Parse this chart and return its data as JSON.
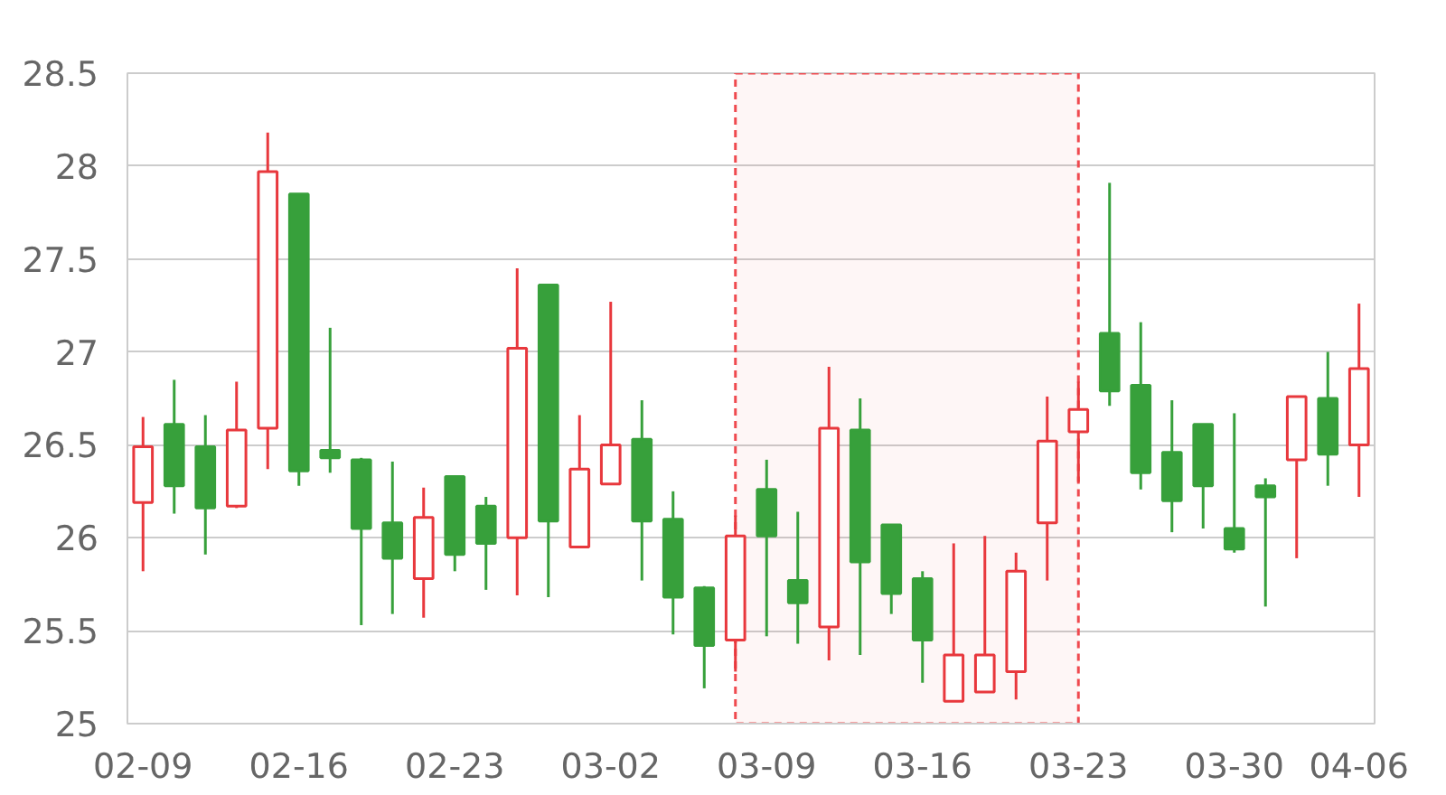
{
  "chart_data": {
    "type": "candlestick",
    "categories": [
      "02-09",
      null,
      null,
      null,
      null,
      "02-16",
      null,
      null,
      null,
      null,
      "02-23",
      null,
      null,
      null,
      null,
      "03-02",
      null,
      null,
      null,
      null,
      "03-09",
      null,
      null,
      null,
      null,
      "03-16",
      null,
      null,
      null,
      null,
      "03-23",
      null,
      null,
      null,
      null,
      "03-30",
      null,
      null,
      null,
      "04-06"
    ],
    "ohlc": [
      [
        26.19,
        26.65,
        25.82,
        26.49
      ],
      [
        26.61,
        26.85,
        26.13,
        26.28
      ],
      [
        26.49,
        26.66,
        25.91,
        26.16
      ],
      [
        26.17,
        26.84,
        26.16,
        26.58
      ],
      [
        26.59,
        28.18,
        26.37,
        27.97
      ],
      [
        27.85,
        27.85,
        26.28,
        26.36
      ],
      [
        26.47,
        27.13,
        26.35,
        26.43
      ],
      [
        26.42,
        26.43,
        25.53,
        26.05
      ],
      [
        26.08,
        26.41,
        25.59,
        25.89
      ],
      [
        25.78,
        26.27,
        25.57,
        26.11
      ],
      [
        26.33,
        26.33,
        25.82,
        25.91
      ],
      [
        26.17,
        26.22,
        25.72,
        25.97
      ],
      [
        26.0,
        27.45,
        25.69,
        27.02
      ],
      [
        27.36,
        27.36,
        25.68,
        26.09
      ],
      [
        25.95,
        26.66,
        25.95,
        26.37
      ],
      [
        26.29,
        27.27,
        26.29,
        26.5
      ],
      [
        26.53,
        26.74,
        25.77,
        26.09
      ],
      [
        26.1,
        26.25,
        25.48,
        25.68
      ],
      [
        25.73,
        25.74,
        25.19,
        25.42
      ],
      [
        25.45,
        26.12,
        25.28,
        26.01
      ],
      [
        26.26,
        26.42,
        25.47,
        26.01
      ],
      [
        25.77,
        26.14,
        25.43,
        25.65
      ],
      [
        25.52,
        26.92,
        25.34,
        26.59
      ],
      [
        26.58,
        26.75,
        25.37,
        25.87
      ],
      [
        26.07,
        26.07,
        25.59,
        25.7
      ],
      [
        25.78,
        25.82,
        25.22,
        25.45
      ],
      [
        25.12,
        25.97,
        25.12,
        25.37
      ],
      [
        25.17,
        26.01,
        25.17,
        25.37
      ],
      [
        25.28,
        25.92,
        25.13,
        25.82
      ],
      [
        26.08,
        26.76,
        25.77,
        26.52
      ],
      [
        26.57,
        26.84,
        26.3,
        26.69
      ],
      [
        27.1,
        27.91,
        26.71,
        26.79
      ],
      [
        26.82,
        27.16,
        26.26,
        26.35
      ],
      [
        26.46,
        26.74,
        26.03,
        26.2
      ],
      [
        26.61,
        26.61,
        26.05,
        26.28
      ],
      [
        26.05,
        26.67,
        25.92,
        25.94
      ],
      [
        26.28,
        26.32,
        25.63,
        26.22
      ],
      [
        26.42,
        26.76,
        25.89,
        26.76
      ],
      [
        26.75,
        27.0,
        26.28,
        26.45
      ],
      [
        26.5,
        27.26,
        26.22,
        26.91
      ]
    ],
    "colors": [
      "#e8383d",
      "#37a03b",
      "#37a03b",
      "#e8383d",
      "#e8383d",
      "#37a03b",
      "#37a03b",
      "#37a03b",
      "#37a03b",
      "#e8383d",
      "#37a03b",
      "#37a03b",
      "#e8383d",
      "#37a03b",
      "#e8383d",
      "#e8383d",
      "#37a03b",
      "#37a03b",
      "#37a03b",
      "#e8383d",
      "#37a03b",
      "#37a03b",
      "#e8383d",
      "#37a03b",
      "#37a03b",
      "#37a03b",
      "#e8383d",
      "#e8383d",
      "#e8383d",
      "#e8383d",
      "#e8383d",
      "#37a03b",
      "#37a03b",
      "#37a03b",
      "#37a03b",
      "#37a03b",
      "#37a03b",
      "#e8383d",
      "#37a03b",
      "#e8383d"
    ],
    "ylim": [
      25,
      28.5
    ],
    "yticks": [
      25,
      25.5,
      26,
      26.5,
      27,
      27.5,
      28,
      28.5
    ],
    "grid": "y"
  }
}
